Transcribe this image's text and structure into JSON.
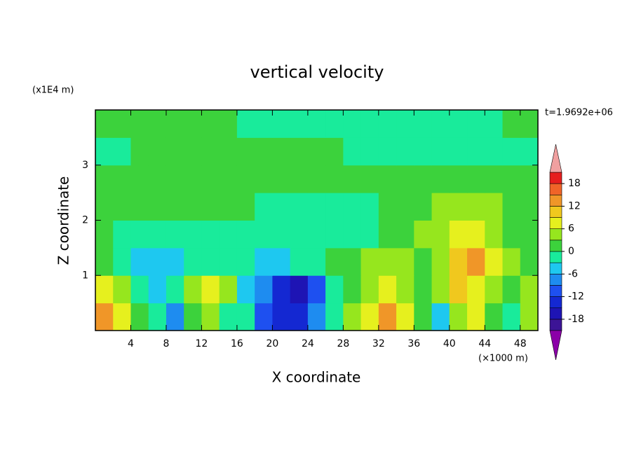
{
  "chart_data": {
    "type": "contour",
    "title": "vertical velocity",
    "x_label": "X coordinate",
    "y_label": "Z coordinate",
    "x_unit": "(×1000 m)",
    "y_unit": "(x1E4 m)",
    "annotation": "t=1.9692e+06",
    "xlim": [
      0,
      50
    ],
    "ylim": [
      0,
      4
    ],
    "xticks": [
      4,
      8,
      12,
      16,
      20,
      24,
      28,
      32,
      36,
      40,
      44,
      48
    ],
    "yticks": [
      1,
      2,
      3
    ],
    "x": [
      1,
      3,
      5,
      7,
      9,
      11,
      13,
      15,
      17,
      19,
      21,
      23,
      25,
      27,
      29,
      31,
      33,
      35,
      37,
      39,
      41,
      43,
      45,
      47,
      49
    ],
    "y": [
      0.25,
      0.75,
      1.25,
      1.75,
      2.25,
      2.75,
      3.25,
      3.75
    ],
    "z": [
      [
        12,
        6,
        2,
        -2,
        -9,
        2,
        5,
        -1,
        -3,
        -12,
        -15,
        -13,
        -8,
        -1,
        5,
        8,
        12,
        6,
        0,
        -6,
        3,
        6,
        2,
        -2,
        4
      ],
      [
        6,
        3,
        -2,
        -4,
        -3,
        3,
        8,
        4,
        -6,
        -9,
        -15,
        -16,
        -10,
        -3,
        2,
        5,
        7,
        4,
        2,
        5,
        9,
        7,
        3,
        1,
        3
      ],
      [
        2,
        -1,
        -4,
        -6,
        -4,
        -2,
        -1,
        -2,
        -2,
        -4,
        -6,
        -3,
        -1,
        0,
        1,
        3,
        5,
        4,
        2,
        4,
        10,
        12,
        6,
        3,
        2
      ],
      [
        1,
        -2,
        -3,
        -2,
        -1,
        -1,
        -2,
        -3,
        -3,
        -2,
        -1,
        -1,
        -1,
        -1,
        -1,
        -1,
        1,
        2,
        3,
        5,
        8,
        7,
        4,
        2,
        1
      ],
      [
        1,
        1,
        1,
        1,
        1,
        1,
        1,
        0,
        0,
        -1,
        -1,
        -1,
        -1,
        -1,
        -1,
        -1,
        1,
        1,
        2,
        3,
        3,
        4,
        3,
        1,
        1
      ],
      [
        1,
        1,
        1,
        1,
        1,
        1,
        1,
        1,
        1,
        1,
        1,
        1,
        1,
        1,
        1,
        1,
        1,
        1,
        1,
        1,
        1,
        1,
        1,
        1,
        1
      ],
      [
        -1,
        -1,
        1,
        1,
        1,
        1,
        1,
        1,
        1,
        1,
        1,
        1,
        1,
        1,
        -1,
        -1,
        -1,
        -1,
        -1,
        -1,
        -1,
        -1,
        -1,
        -1,
        -1
      ],
      [
        1,
        1,
        1,
        1,
        1,
        1,
        1,
        1,
        -1,
        -1,
        -1,
        -1,
        -1,
        -1,
        -1,
        -1,
        -1,
        -1,
        -1,
        -1,
        -1,
        -1,
        -1,
        1,
        1
      ]
    ],
    "colorbar": {
      "levels": [
        -21,
        -18,
        -15,
        -12,
        -9,
        -6,
        -3,
        0,
        3,
        6,
        9,
        12,
        15,
        18,
        21
      ],
      "colors": [
        "#8b00a8",
        "#3c1496",
        "#1e14b4",
        "#1428d2",
        "#1e50f0",
        "#1e8cf0",
        "#1ec8f0",
        "#19eb9b",
        "#3cd23c",
        "#96e61e",
        "#e6f01e",
        "#f0c81e",
        "#f09628",
        "#f06428",
        "#e61e1e",
        "#f0a0a0"
      ],
      "ticks": [
        -18,
        -12,
        -6,
        0,
        6,
        12,
        18
      ]
    }
  }
}
